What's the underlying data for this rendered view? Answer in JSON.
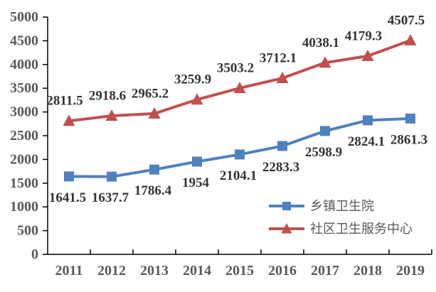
{
  "chart_data": {
    "type": "line",
    "title": "",
    "xlabel": "",
    "ylabel": "",
    "categories": [
      "2011",
      "2012",
      "2013",
      "2014",
      "2015",
      "2016",
      "2017",
      "2018",
      "2019"
    ],
    "series": [
      {
        "key": "township-health-centers",
        "name": "乡镇卫生院",
        "color": "#4F81BD",
        "marker": "square",
        "label_position": "below",
        "values": [
          1641.5,
          1637.7,
          1786.4,
          1954,
          2104.1,
          2283.3,
          2598.9,
          2824.1,
          2861.3
        ],
        "labels": [
          "1641.5",
          "1637.7",
          "1786.4",
          "1954",
          "2104.1",
          "2283.3",
          "2598.9",
          "2824.1",
          "2861.3"
        ]
      },
      {
        "key": "community-health-service-centers",
        "name": "社区卫生服务中心",
        "color": "#C0504D",
        "marker": "triangle",
        "label_position": "above",
        "values": [
          2811.5,
          2918.6,
          2965.2,
          3259.9,
          3503.2,
          3712.1,
          4038.1,
          4179.3,
          4507.5
        ],
        "labels": [
          "2811.5",
          "2918.6",
          "2965.2",
          "3259.9",
          "3503.2",
          "3712.1",
          "4038.1",
          "4179.3",
          "4507.5"
        ]
      }
    ],
    "ylim": [
      0,
      5000
    ],
    "ytick_step": 500,
    "ytick_labels": [
      "0",
      "500",
      "1000",
      "1500",
      "2000",
      "2500",
      "3000",
      "3500",
      "4000",
      "4500",
      "5000"
    ],
    "grid": false,
    "legend_position": "inside-lower-right"
  },
  "colors": {
    "background": "#ffffff",
    "axis": "#000000",
    "axis_tick_label": "#595959",
    "data_label": "#333333",
    "legend_text": "#595959"
  }
}
